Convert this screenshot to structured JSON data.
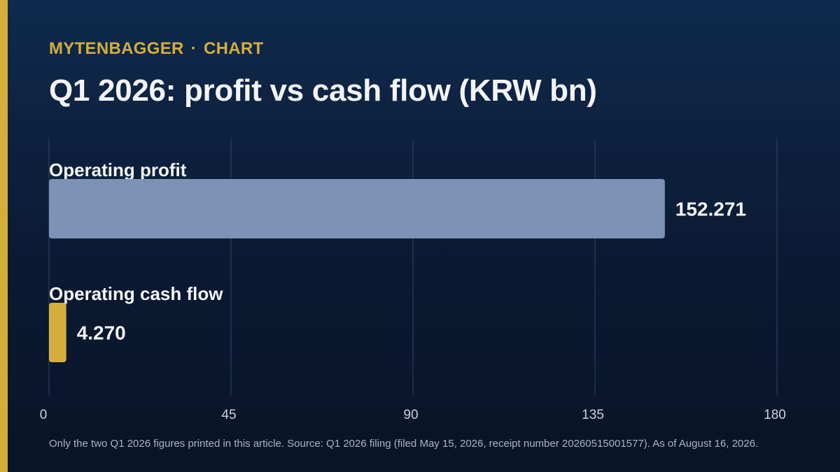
{
  "brand": {
    "name": "MYTENBAGGER",
    "separator": "·",
    "section": "CHART"
  },
  "title": "Q1 2026: profit vs cash flow (KRW bn)",
  "footnote": "Only the two Q1 2026 figures printed in this article. Source: Q1 2026 filing (filed May 15, 2026, receipt number 20260515001577). As of August 16, 2026.",
  "colors": {
    "accent": "#d4ae3c",
    "profit_bar": "#7c93b6",
    "cashflow_bar": "#d4ae3c",
    "gridline": "#2e4668",
    "tick_text": "#c9d2e0"
  },
  "chart_data": {
    "type": "bar",
    "orientation": "horizontal",
    "categories": [
      "Operating profit",
      "Operating cash flow"
    ],
    "values": [
      152.271,
      4.27
    ],
    "value_labels": [
      "152.271",
      "4.270"
    ],
    "xlim": [
      0,
      180
    ],
    "xticks": [
      0,
      45,
      90,
      135,
      180
    ],
    "tick_labels": [
      "0",
      "45",
      "90",
      "135",
      "180"
    ],
    "grid": true,
    "title": "Q1 2026: profit vs cash flow (KRW bn)"
  }
}
